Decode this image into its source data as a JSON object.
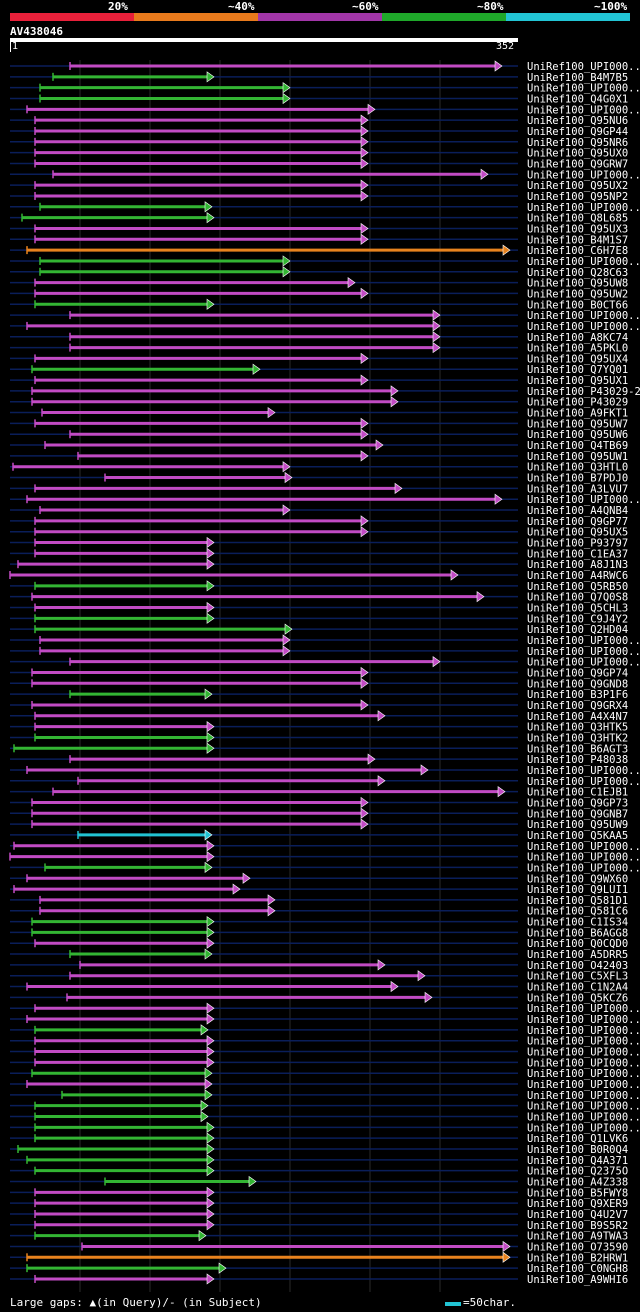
{
  "scale": {
    "labels": [
      "20%",
      "~40%",
      "~60%",
      "~80%",
      "~100%"
    ],
    "colors": [
      "#e8203a",
      "#e87a1c",
      "#a236a8",
      "#1fa82a",
      "#22c4d4"
    ]
  },
  "query": {
    "id": "AV438046",
    "start": "1",
    "end": "352"
  },
  "footer": {
    "gaps_note": "Large gaps: ▲(in Query)/- (in Subject)",
    "legend_label": "=50char."
  },
  "colors": {
    "magenta": "#c24bc4",
    "green": "#33b533",
    "orange": "#e8831e",
    "cyan": "#22c4d4",
    "row_line": "#0a1e5a"
  },
  "hits": [
    "UniRef100_UPI000..",
    "UniRef100_B4M7B5",
    "UniRef100_UPI000..",
    "UniRef100_Q4G0X1",
    "UniRef100_UPI000..",
    "UniRef100_Q95NU6",
    "UniRef100_Q9GP44",
    "UniRef100_Q95NR6",
    "UniRef100_Q95UX0",
    "UniRef100_Q9GRW7",
    "UniRef100_UPI000..",
    "UniRef100_Q95UX2",
    "UniRef100_Q95NP2",
    "UniRef100_UPI000..",
    "UniRef100_Q8L685",
    "UniRef100_Q95UX3",
    "UniRef100_B4M1S7",
    "UniRef100_C6H7E8",
    "UniRef100_UPI000..",
    "UniRef100_Q28C63",
    "UniRef100_Q95UW8",
    "UniRef100_Q95UW2",
    "UniRef100_B0CT66",
    "UniRef100_UPI000..",
    "UniRef100_UPI000..",
    "UniRef100_A8KC74",
    "UniRef100_A5PKL0",
    "UniRef100_Q95UX4",
    "UniRef100_Q7YQ01",
    "UniRef100_Q95UX1",
    "UniRef100_P43029-2",
    "UniRef100_P43029",
    "UniRef100_A9FKT1",
    "UniRef100_Q95UW7",
    "UniRef100_Q95UW6",
    "UniRef100_Q4TB69",
    "UniRef100_Q95UW1",
    "UniRef100_Q3HTL0",
    "UniRef100_B7PDJ0",
    "UniRef100_A3LVU7",
    "UniRef100_UPI000..",
    "UniRef100_A4QNB4",
    "UniRef100_Q9GP77",
    "UniRef100_Q95UX5",
    "UniRef100_P93797",
    "UniRef100_C1EA37",
    "UniRef100_A8J1N3",
    "UniRef100_A4RWC6",
    "UniRef100_Q5RB50",
    "UniRef100_Q7Q0S8",
    "UniRef100_Q5CHL3",
    "UniRef100_C9J4Y2",
    "UniRef100_Q2HD04",
    "UniRef100_UPI000..",
    "UniRef100_UPI000..",
    "UniRef100_UPI000..",
    "UniRef100_Q9GP74",
    "UniRef100_Q9GND8",
    "UniRef100_B3P1F6",
    "UniRef100_Q9GRX4",
    "UniRef100_A4X4N7",
    "UniRef100_Q3HTK5",
    "UniRef100_Q3HTK2",
    "UniRef100_B6AGT3",
    "UniRef100_P48038",
    "UniRef100_UPI000..",
    "UniRef100_UPI000..",
    "UniRef100_C1EJB1",
    "UniRef100_Q9GP73",
    "UniRef100_Q9GNB7",
    "UniRef100_Q95UW9",
    "UniRef100_Q5KAA5",
    "UniRef100_UPI000..",
    "UniRef100_UPI000..",
    "UniRef100_UPI000..",
    "UniRef100_Q9WX60",
    "UniRef100_Q9LUI1",
    "UniRef100_Q581D1",
    "UniRef100_Q581C6",
    "UniRef100_C1IS34",
    "UniRef100_B6AGG8",
    "UniRef100_Q0CQD0",
    "UniRef100_A5DRR5",
    "UniRef100_O42403",
    "UniRef100_C5XFL3",
    "UniRef100_C1N2A4",
    "UniRef100_Q5KCZ6",
    "UniRef100_UPI000..",
    "UniRef100_UPI000..",
    "UniRef100_UPI000..",
    "UniRef100_UPI000..",
    "UniRef100_UPI000..",
    "UniRef100_UPI000..",
    "UniRef100_UPI000..",
    "UniRef100_UPI000..",
    "UniRef100_UPI000..",
    "UniRef100_UPI000..",
    "UniRef100_UPI000..",
    "UniRef100_UPI000..",
    "UniRef100_Q1LVK6",
    "UniRef100_B0R0Q4",
    "UniRef100_Q4A371",
    "UniRef100_Q2375O",
    "UniRef100_A4Z338",
    "UniRef100_B5FWY8",
    "UniRef100_Q9XER9",
    "UniRef100_Q4U2V7",
    "UniRef100_B9S5R2",
    "UniRef100_A9TWA3",
    "UniRef100_O73590",
    "UniRef100_B2HRW1",
    "UniRef100_C0NGH8",
    "UniRef100_A9WHI6"
  ]
}
